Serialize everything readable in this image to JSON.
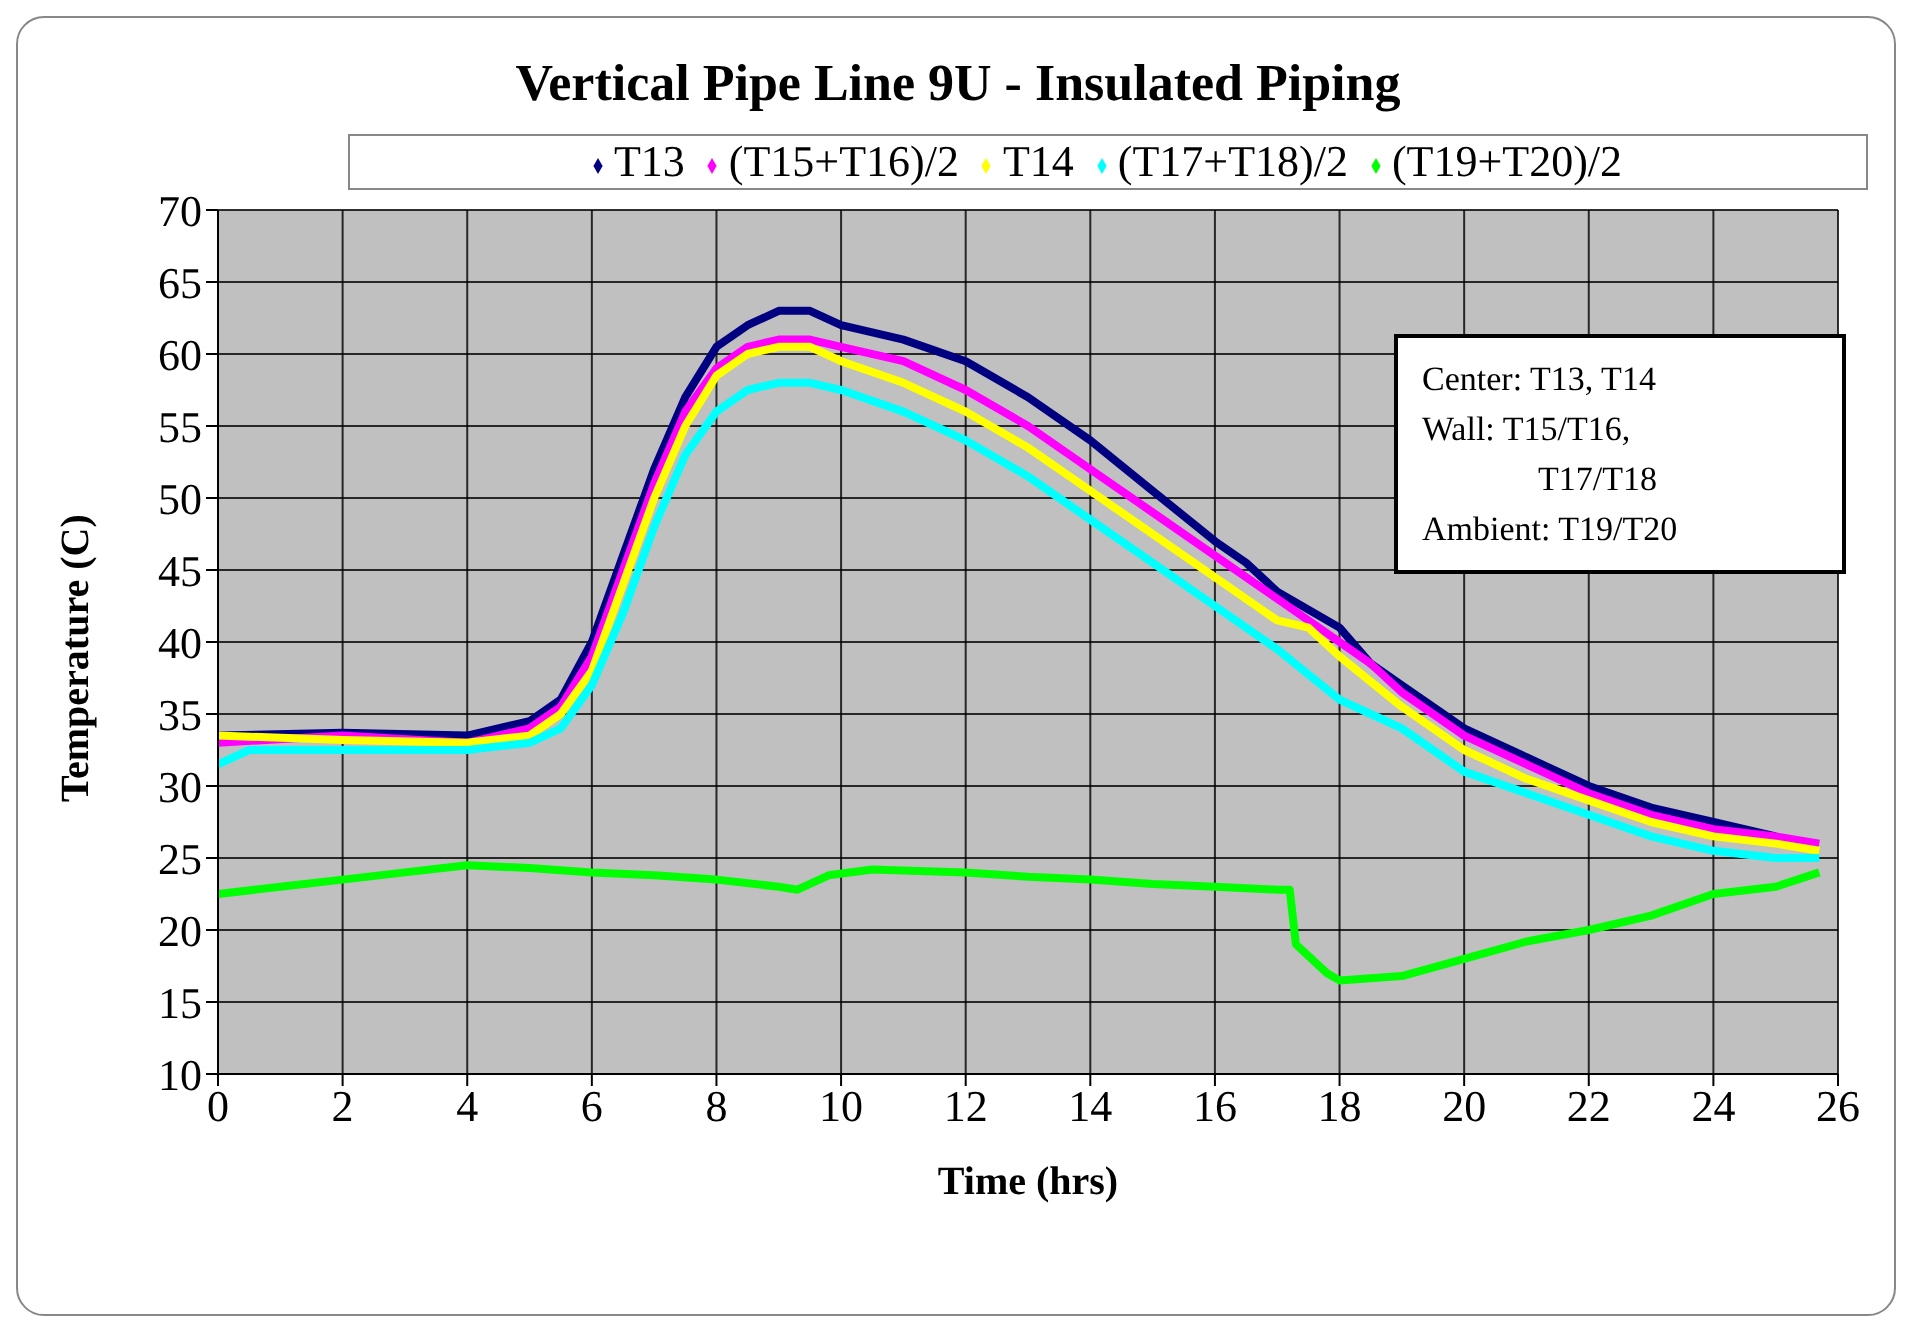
{
  "chart_data": {
    "type": "line",
    "title": "Vertical Pipe Line 9U - Insulated Piping",
    "xlabel": "Time (hrs)",
    "ylabel": "Temperature (C)",
    "xlim": [
      0,
      26
    ],
    "xticks": [
      0,
      2,
      4,
      6,
      8,
      10,
      12,
      14,
      16,
      18,
      20,
      22,
      24,
      26
    ],
    "ylim": [
      10,
      70
    ],
    "yticks": [
      10,
      15,
      20,
      25,
      30,
      35,
      40,
      45,
      50,
      55,
      60,
      65,
      70
    ],
    "grid": true,
    "legend": "top",
    "marker": "none",
    "annotations": [
      "Center: T13, T14",
      "Wall: T15/T16,",
      "T17/T18",
      "Ambient: T19/T20"
    ],
    "series": [
      {
        "name": "T13",
        "color": "#000080",
        "x": [
          0,
          2,
          4,
          5,
          5.5,
          6,
          6.5,
          7,
          7.5,
          8,
          8.5,
          9,
          9.5,
          10,
          11,
          12,
          13,
          14,
          15,
          16,
          16.5,
          17,
          18,
          18.5,
          19,
          20,
          21,
          22,
          23,
          24,
          25
        ],
        "values": [
          33.5,
          33.7,
          33.5,
          34.5,
          36,
          40,
          46,
          52,
          57,
          60.5,
          62,
          63,
          63,
          62,
          61,
          59.5,
          57,
          54,
          50.5,
          47,
          45.5,
          43.5,
          41,
          38.5,
          37,
          34,
          32,
          30,
          28.5,
          27.5,
          26.5
        ]
      },
      {
        "name": "(T15+T16)/2",
        "color": "#ff00ff",
        "x": [
          0,
          2,
          4,
          5,
          5.5,
          6,
          6.5,
          7,
          7.5,
          8,
          8.5,
          9,
          9.5,
          10,
          11,
          12,
          13,
          14,
          15,
          16,
          17,
          18,
          18.5,
          19,
          20,
          21,
          22,
          23,
          24,
          25,
          25.7
        ],
        "values": [
          33,
          33.5,
          33,
          34,
          35.5,
          39,
          45,
          51,
          56,
          59,
          60.5,
          61,
          61,
          60.5,
          59.5,
          57.5,
          55,
          52,
          49,
          46,
          43,
          40,
          38.5,
          36.5,
          33.5,
          31.5,
          29.5,
          28,
          27,
          26.5,
          26
        ]
      },
      {
        "name": "T14",
        "color": "#ffff00",
        "x": [
          0,
          2,
          4,
          5,
          5.5,
          6,
          6.5,
          7,
          7.5,
          8,
          8.5,
          9,
          9.5,
          10,
          11,
          12,
          13,
          14,
          15,
          16,
          17,
          17.5,
          18,
          19,
          20,
          21,
          22,
          23,
          24,
          25,
          25.7
        ],
        "values": [
          33.5,
          33.2,
          33,
          33.5,
          35,
          38,
          44,
          50,
          55,
          58.5,
          60,
          60.5,
          60.5,
          59.5,
          58,
          56,
          53.5,
          50.5,
          47.5,
          44.5,
          41.5,
          41,
          39,
          35.5,
          32.5,
          30.5,
          29,
          27.5,
          26.5,
          26,
          25.5
        ]
      },
      {
        "name": "(T17+T18)/2",
        "color": "#00ffff",
        "x": [
          0,
          0.5,
          2,
          4,
          5,
          5.5,
          6,
          6.5,
          7,
          7.5,
          8,
          8.5,
          9,
          9.5,
          10,
          11,
          12,
          13,
          14,
          15,
          16,
          17,
          18,
          18.5,
          19,
          20,
          21,
          22,
          23,
          24,
          25,
          25.7
        ],
        "values": [
          31.5,
          32.5,
          32.5,
          32.5,
          33,
          34,
          37,
          42,
          48,
          53,
          56,
          57.5,
          58,
          58,
          57.5,
          56,
          54,
          51.5,
          48.5,
          45.5,
          42.5,
          39.5,
          36,
          35,
          34,
          31,
          29.5,
          28,
          26.5,
          25.5,
          25,
          25
        ]
      },
      {
        "name": "(T19+T20)/2",
        "color": "#00ff00",
        "x": [
          0,
          1,
          2,
          3,
          4,
          5,
          6,
          7,
          8,
          9,
          9.3,
          9.8,
          10.5,
          12,
          13,
          14,
          15,
          16,
          17,
          17.2,
          17.3,
          17.8,
          18,
          19,
          20,
          21,
          22,
          23,
          24,
          25,
          25.7
        ],
        "values": [
          22.5,
          23,
          23.5,
          24,
          24.5,
          24.3,
          24,
          23.8,
          23.5,
          23,
          22.8,
          23.8,
          24.2,
          24,
          23.7,
          23.5,
          23.2,
          23,
          22.8,
          22.8,
          19,
          17,
          16.5,
          16.8,
          18,
          19.2,
          20,
          21,
          22.5,
          23,
          24
        ]
      }
    ]
  }
}
